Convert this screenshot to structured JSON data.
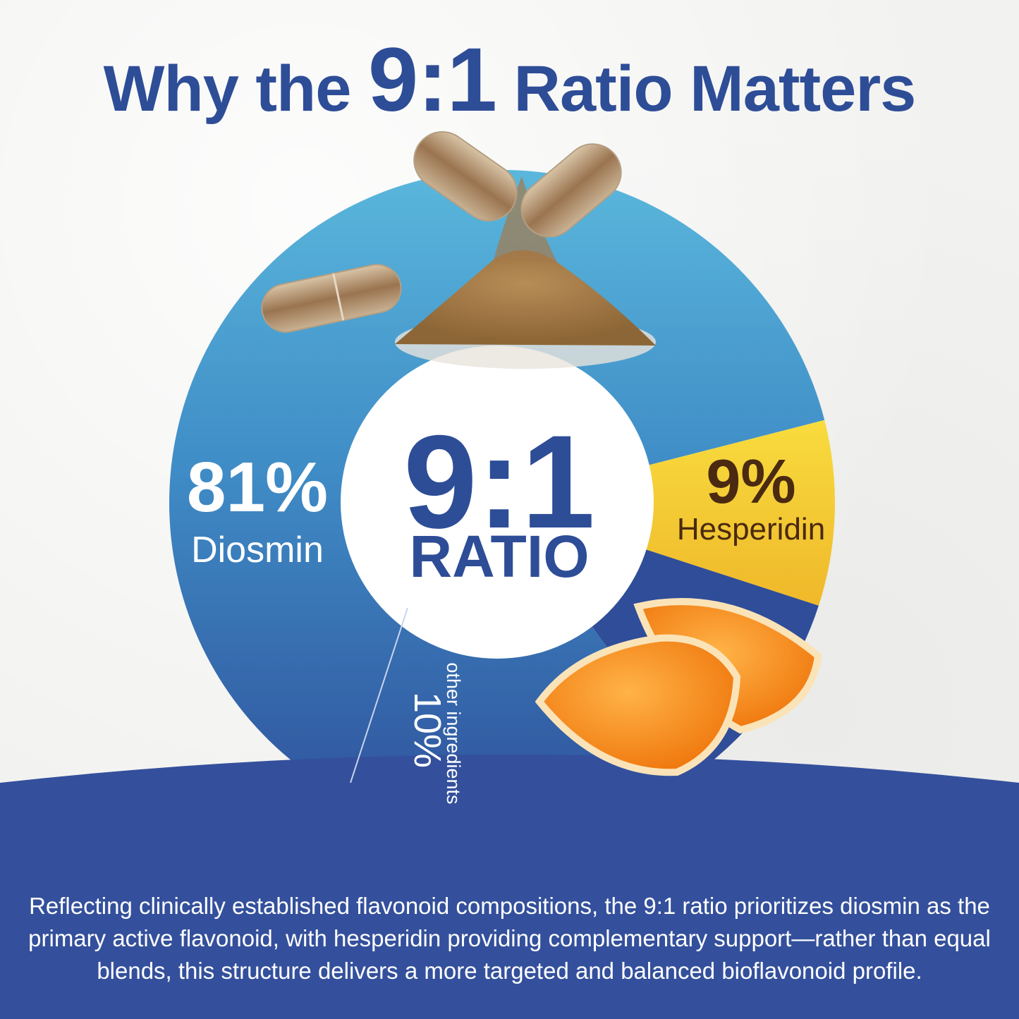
{
  "headline": {
    "before": "Why the",
    "ratio": "9:1",
    "after": "Ratio Matters"
  },
  "center": {
    "ratio": "9:1",
    "label": "RATIO"
  },
  "colors": {
    "navy": "#2e4d97",
    "diosmin_top": "#4b9ecf",
    "diosmin_bottom": "#2f4f9a",
    "hesperidin_top": "#f6d638",
    "hesperidin_bottom": "#f0b92a",
    "other": "#2f4d98",
    "hesperidin_text": "#4a2a10",
    "footer_band": "#34509c"
  },
  "chart_data": {
    "type": "pie",
    "slices": [
      {
        "label": "Diosmin",
        "value": 81,
        "value_label": "81%"
      },
      {
        "label": "Hesperidin",
        "value": 9,
        "value_label": "9%"
      },
      {
        "label": "other ingredients",
        "value": 10,
        "value_label": "10%"
      }
    ]
  },
  "footer": {
    "text": "Reflecting clinically established flavonoid compositions, the 9:1 ratio prioritizes diosmin as the primary active flavonoid, with hesperidin providing complementary support—rather than equal blends, this structure delivers a more targeted and balanced bioflavonoid profile."
  }
}
